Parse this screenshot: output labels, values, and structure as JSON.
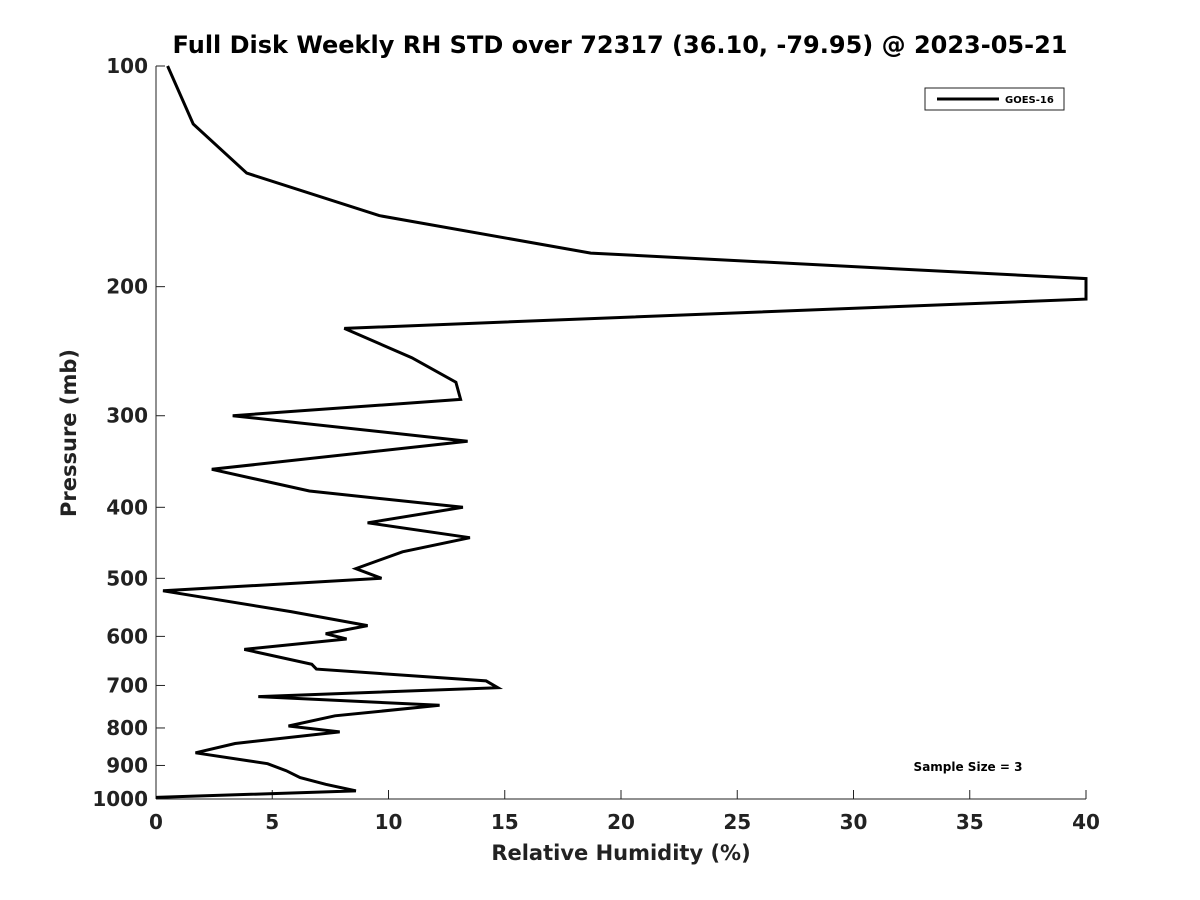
{
  "chart_data": {
    "type": "line",
    "title": "Full Disk Weekly RH STD over 72317 (36.10, -79.95) @ 2023-05-21",
    "xlabel": "Relative Humidity (%)",
    "ylabel": "Pressure (mb)",
    "xlim": [
      0,
      40
    ],
    "ylim": [
      100,
      1000
    ],
    "y_scale": "log",
    "y_reversed": true,
    "grid": false,
    "legend_position": "top-right",
    "x_ticks": [
      "0",
      "5",
      "10",
      "15",
      "20",
      "25",
      "30",
      "35",
      "40"
    ],
    "y_ticks": [
      "100",
      "200",
      "300",
      "400",
      "500",
      "600",
      "700",
      "800",
      "900",
      "1000"
    ],
    "annotation": "Sample Size = 3",
    "series": [
      {
        "name": "GOES-16",
        "color": "#000000",
        "x": [
          0.5,
          1.6,
          3.9,
          9.6,
          18.7,
          40.0,
          40.0,
          8.1,
          11.0,
          12.9,
          13.1,
          3.3,
          13.4,
          2.4,
          6.6,
          13.2,
          9.1,
          13.5,
          10.6,
          8.6,
          9.7,
          0.3,
          5.8,
          9.1,
          7.3,
          8.2,
          3.8,
          6.7,
          6.9,
          14.2,
          14.7,
          4.4,
          12.2,
          7.7,
          5.7,
          7.9,
          3.4,
          1.7,
          4.8,
          5.6,
          6.2,
          7.3,
          8.6,
          0.0
        ],
        "y": [
          100,
          120,
          140,
          160,
          180,
          195,
          208,
          228,
          250,
          270,
          285,
          300,
          325,
          355,
          380,
          400,
          420,
          440,
          460,
          485,
          500,
          520,
          555,
          580,
          595,
          605,
          625,
          655,
          665,
          690,
          705,
          725,
          745,
          770,
          795,
          810,
          840,
          865,
          895,
          915,
          935,
          955,
          975,
          995
        ]
      }
    ]
  }
}
